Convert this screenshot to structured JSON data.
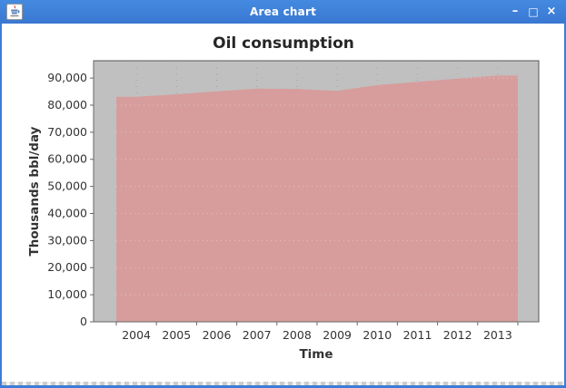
{
  "window": {
    "title": "Area chart",
    "icon": "java-coffee-cup-icon",
    "controls": [
      {
        "name": "minimize",
        "glyph": "–"
      },
      {
        "name": "maximize",
        "glyph": "□"
      },
      {
        "name": "close",
        "glyph": "×"
      }
    ]
  },
  "chart_data": {
    "type": "area",
    "title": "Oil consumption",
    "xlabel": "Time",
    "ylabel": "Thousands bbl/day",
    "categories": [
      "2004",
      "2005",
      "2006",
      "2007",
      "2008",
      "2009",
      "2010",
      "2011",
      "2012",
      "2013"
    ],
    "values": [
      83100,
      84000,
      85100,
      86100,
      86000,
      85300,
      87400,
      88600,
      89800,
      90900
    ],
    "ylim": [
      0,
      96400
    ],
    "ytick_step": 10000,
    "ytick_labels": [
      "0",
      "10,000",
      "20,000",
      "30,000",
      "40,000",
      "50,000",
      "60,000",
      "70,000",
      "80,000",
      "90,000"
    ],
    "grid": "dotted",
    "legend": "none",
    "colors": {
      "area_fill": "#d79d9d",
      "plot_background": "#c0c0c0",
      "plot_border": "#555555",
      "gridline": "#999999",
      "gridline_overlay": "#ffffff",
      "axis_line": "#666666",
      "tick_label": "#333333",
      "axis_label": "#333333",
      "title_color": "#262626",
      "titlebar_blue": "#3c7cd8"
    }
  }
}
